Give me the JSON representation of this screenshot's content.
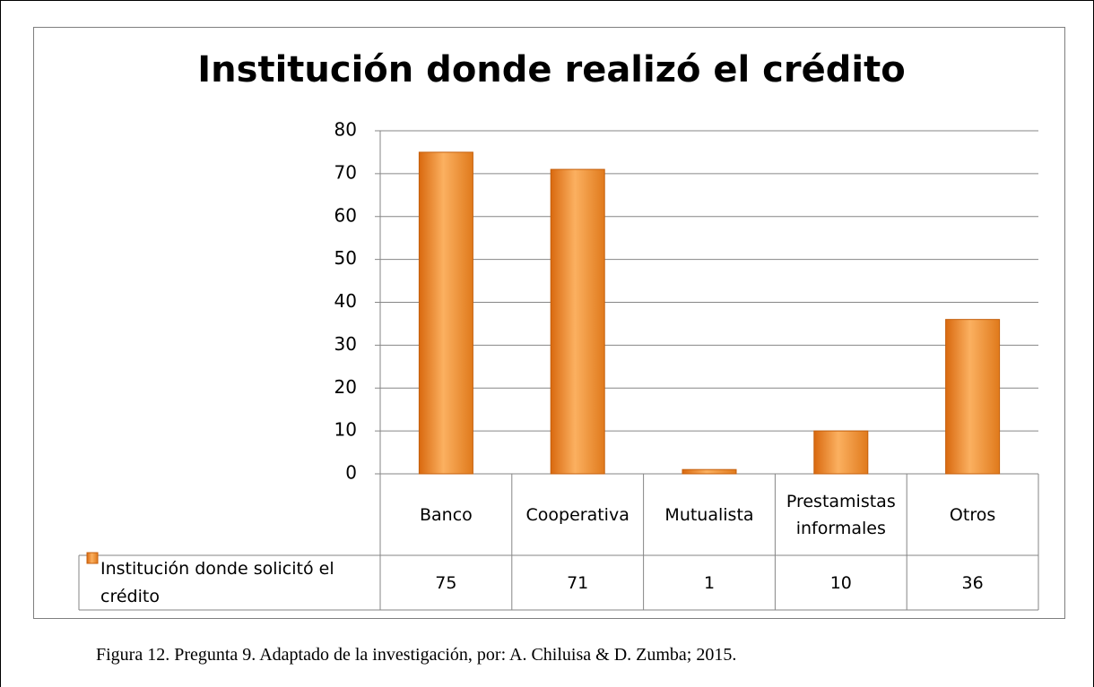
{
  "chart_data": {
    "type": "bar",
    "title": "Institución donde realizó el crédito",
    "categories": [
      "Banco",
      "Cooperativa",
      "Mutualista",
      "Prestamistas informales",
      "Otros"
    ],
    "series": [
      {
        "name": "Institución donde solicitó el crédito",
        "color": "#f79646",
        "values": [
          75,
          71,
          1,
          10,
          36
        ]
      }
    ],
    "ylim": [
      0,
      80
    ],
    "yticks": [
      0,
      10,
      20,
      30,
      40,
      50,
      60,
      70,
      80
    ],
    "grid": true,
    "legend": "data-table"
  },
  "caption": "Figura 12. Pregunta 9. Adaptado de la investigación, por: A. Chiluisa & D. Zumba; 2015."
}
